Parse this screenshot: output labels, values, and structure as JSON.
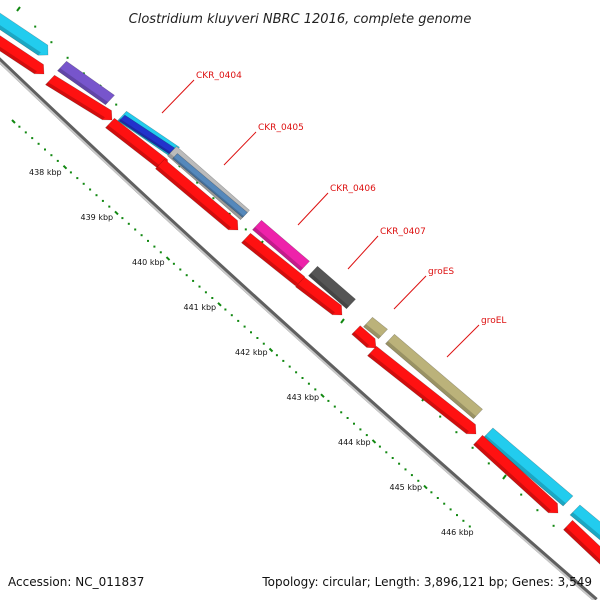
{
  "title": "Clostridium kluyveri NBRC 12016, complete genome",
  "footer": {
    "accession": "Accession: NC_011837",
    "summary": "Topology: circular; Length: 3,896,121 bp; Genes: 3,549"
  },
  "axis_labels": [
    "438 kbp",
    "439 kbp",
    "440 kbp",
    "441 kbp",
    "442 kbp",
    "443 kbp",
    "444 kbp",
    "445 kbp",
    "446 kbp"
  ],
  "gene_labels": [
    "CKR_0404",
    "CKR_0405",
    "CKR_0406",
    "CKR_0407",
    "groES",
    "groEL"
  ],
  "colors": {
    "label_red": "#dd1111",
    "track_red": "#ff1111",
    "tick_green": "#118811",
    "backbone_gray": "#909090",
    "cyan": "#22ccee",
    "purple": "#7755cc",
    "blue": "#2233cc",
    "steel": "#5588bb",
    "light_gray": "#bbbbbb",
    "magenta": "#ee22aa",
    "dark_gray": "#555555",
    "olive": "#bbb27a"
  }
}
